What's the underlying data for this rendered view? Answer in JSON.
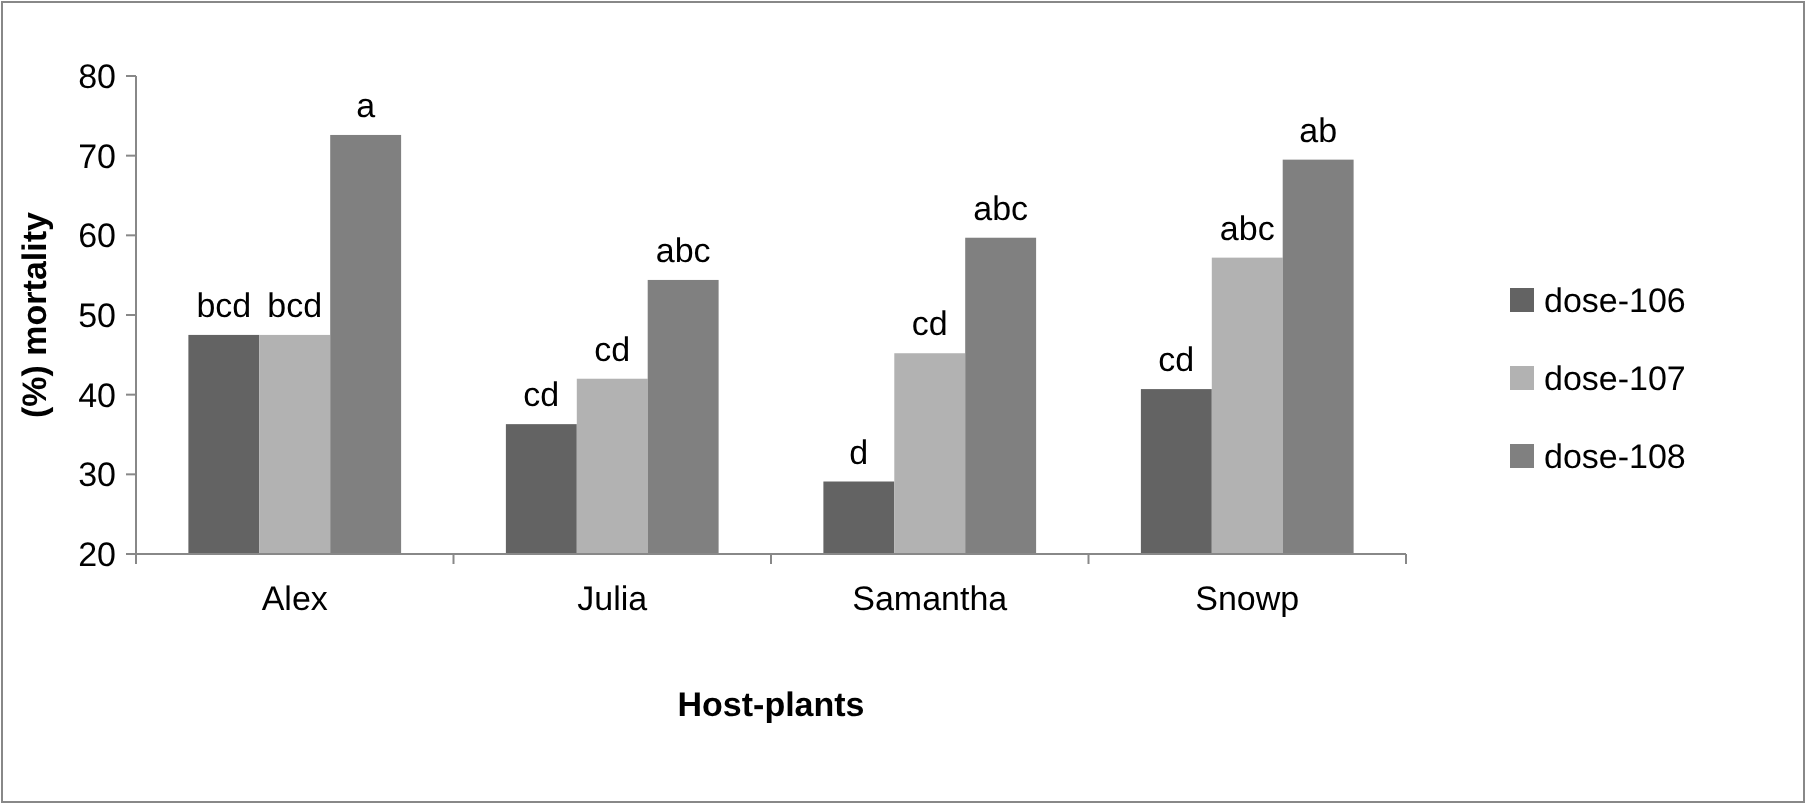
{
  "chart_data": {
    "type": "bar",
    "xlabel": "Host-plants",
    "ylabel": "(%) mortality",
    "categories": [
      "Alex",
      "Julia",
      "Samantha",
      "Snowp"
    ],
    "series": [
      {
        "name": "dose-106",
        "color": "#636363",
        "values": [
          47.5,
          36.3,
          29.1,
          40.7
        ],
        "value_labels": [
          "bcd",
          "cd",
          "d",
          "cd"
        ]
      },
      {
        "name": "dose-107",
        "color": "#b2b2b2",
        "values": [
          47.5,
          42,
          45.2,
          57.2
        ],
        "value_labels": [
          "bcd",
          "cd",
          "cd",
          "abc"
        ]
      },
      {
        "name": "dose-108",
        "color": "#808080",
        "values": [
          72.6,
          54.4,
          59.7,
          69.5
        ],
        "value_labels": [
          "a",
          "abc",
          "abc",
          "ab"
        ]
      }
    ],
    "ylim": [
      20,
      80
    ],
    "yticks": [
      20,
      30,
      40,
      50,
      60,
      70,
      80
    ],
    "grid": false,
    "legend": "right"
  }
}
